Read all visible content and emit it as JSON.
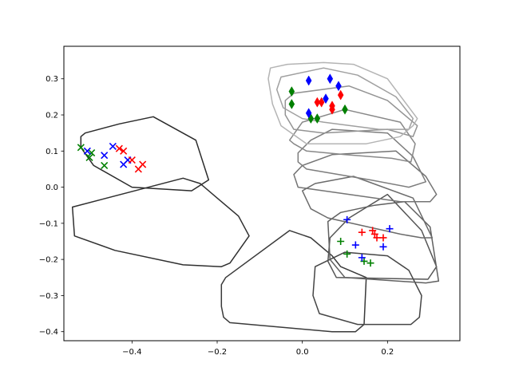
{
  "chart_data": {
    "type": "scatter",
    "title": "",
    "xlabel": "",
    "ylabel": "",
    "xlim": [
      -0.56,
      0.37
    ],
    "ylim": [
      -0.425,
      0.39
    ],
    "grid": false,
    "x_ticks": [
      {
        "value": -0.4,
        "label": "−0.4"
      },
      {
        "value": -0.2,
        "label": "−0.2"
      },
      {
        "value": 0.0,
        "label": "0.0"
      },
      {
        "value": 0.2,
        "label": "0.2"
      }
    ],
    "y_ticks": [
      {
        "value": -0.4,
        "label": "−0.4"
      },
      {
        "value": -0.3,
        "label": "−0.3"
      },
      {
        "value": -0.2,
        "label": "−0.2"
      },
      {
        "value": -0.1,
        "label": "−0.1"
      },
      {
        "value": 0.0,
        "label": "0.0"
      },
      {
        "value": 0.1,
        "label": "0.1"
      },
      {
        "value": 0.2,
        "label": "0.2"
      },
      {
        "value": 0.3,
        "label": "0.3"
      }
    ],
    "hulls": [
      {
        "color": "#2b2b2b",
        "points": [
          [
            -0.52,
            0.14
          ],
          [
            -0.51,
            0.15
          ],
          [
            -0.43,
            0.175
          ],
          [
            -0.35,
            0.195
          ],
          [
            -0.25,
            0.13
          ],
          [
            -0.22,
            0.02
          ],
          [
            -0.26,
            -0.01
          ],
          [
            -0.4,
            0.0
          ],
          [
            -0.49,
            0.06
          ],
          [
            -0.52,
            0.11
          ]
        ]
      },
      {
        "color": "#2f2f2f",
        "points": [
          [
            -0.54,
            -0.055
          ],
          [
            -0.28,
            0.025
          ],
          [
            -0.24,
            0.01
          ],
          [
            -0.2,
            -0.03
          ],
          [
            -0.15,
            -0.08
          ],
          [
            -0.125,
            -0.135
          ],
          [
            -0.17,
            -0.21
          ],
          [
            -0.19,
            -0.22
          ],
          [
            -0.28,
            -0.215
          ],
          [
            -0.44,
            -0.175
          ],
          [
            -0.535,
            -0.135
          ]
        ]
      },
      {
        "color": "#3a3a3a",
        "points": [
          [
            -0.19,
            -0.27
          ],
          [
            -0.18,
            -0.25
          ],
          [
            -0.03,
            -0.12
          ],
          [
            0.02,
            -0.14
          ],
          [
            0.07,
            -0.19
          ],
          [
            0.09,
            -0.22
          ],
          [
            0.15,
            -0.25
          ],
          [
            0.145,
            -0.38
          ],
          [
            0.125,
            -0.4
          ],
          [
            0.07,
            -0.4
          ],
          [
            -0.17,
            -0.375
          ],
          [
            -0.185,
            -0.36
          ],
          [
            -0.19,
            -0.33
          ]
        ]
      },
      {
        "color": "#454545",
        "points": [
          [
            0.025,
            -0.3
          ],
          [
            0.03,
            -0.22
          ],
          [
            0.1,
            -0.18
          ],
          [
            0.2,
            -0.19
          ],
          [
            0.25,
            -0.23
          ],
          [
            0.28,
            -0.3
          ],
          [
            0.275,
            -0.36
          ],
          [
            0.255,
            -0.38
          ],
          [
            0.13,
            -0.38
          ],
          [
            0.04,
            -0.35
          ]
        ]
      },
      {
        "color": "#555555",
        "points": [
          [
            0.06,
            -0.205
          ],
          [
            0.065,
            -0.14
          ],
          [
            0.11,
            -0.085
          ],
          [
            0.2,
            -0.02
          ],
          [
            0.28,
            -0.12
          ],
          [
            0.315,
            -0.22
          ],
          [
            0.295,
            -0.255
          ],
          [
            0.08,
            -0.25
          ]
        ]
      },
      {
        "color": "#606060",
        "points": [
          [
            0.06,
            -0.095
          ],
          [
            0.09,
            -0.07
          ],
          [
            0.17,
            -0.05
          ],
          [
            0.24,
            -0.04
          ],
          [
            0.3,
            -0.11
          ],
          [
            0.32,
            -0.26
          ],
          [
            0.29,
            -0.265
          ],
          [
            0.1,
            -0.25
          ],
          [
            0.065,
            -0.2
          ]
        ]
      },
      {
        "color": "#6b6b6b",
        "points": [
          [
            0.0,
            -0.01
          ],
          [
            0.03,
            0.01
          ],
          [
            0.12,
            0.03
          ],
          [
            0.26,
            -0.03
          ],
          [
            0.305,
            -0.14
          ],
          [
            0.28,
            -0.14
          ],
          [
            0.23,
            -0.13
          ],
          [
            0.06,
            -0.085
          ],
          [
            0.02,
            -0.06
          ]
        ]
      },
      {
        "color": "#747474",
        "points": [
          [
            -0.02,
            0.035
          ],
          [
            0.0,
            0.06
          ],
          [
            0.07,
            0.09
          ],
          [
            0.22,
            0.1
          ],
          [
            0.29,
            0.03
          ],
          [
            0.315,
            -0.02
          ],
          [
            0.3,
            -0.04
          ],
          [
            0.23,
            -0.04
          ],
          [
            0.05,
            -0.01
          ],
          [
            -0.01,
            0.0
          ]
        ]
      },
      {
        "color": "#7d7d7d",
        "points": [
          [
            -0.01,
            0.095
          ],
          [
            0.02,
            0.13
          ],
          [
            0.07,
            0.16
          ],
          [
            0.2,
            0.15
          ],
          [
            0.26,
            0.085
          ],
          [
            0.29,
            0.015
          ],
          [
            0.25,
            0.0
          ],
          [
            0.16,
            0.02
          ],
          [
            0.01,
            0.05
          ],
          [
            -0.01,
            0.07
          ]
        ]
      },
      {
        "color": "#888888",
        "points": [
          [
            -0.03,
            0.13
          ],
          [
            0.0,
            0.18
          ],
          [
            0.1,
            0.215
          ],
          [
            0.23,
            0.18
          ],
          [
            0.265,
            0.12
          ],
          [
            0.255,
            0.07
          ],
          [
            0.21,
            0.08
          ],
          [
            0.1,
            0.09
          ],
          [
            0.01,
            0.1
          ],
          [
            -0.02,
            0.12
          ]
        ]
      },
      {
        "color": "#939393",
        "points": [
          [
            -0.04,
            0.24
          ],
          [
            -0.02,
            0.26
          ],
          [
            0.11,
            0.28
          ],
          [
            0.2,
            0.24
          ],
          [
            0.27,
            0.17
          ],
          [
            0.26,
            0.14
          ],
          [
            0.2,
            0.16
          ],
          [
            0.05,
            0.15
          ],
          [
            -0.02,
            0.16
          ],
          [
            -0.04,
            0.2
          ]
        ]
      },
      {
        "color": "#a0a0a0",
        "points": [
          [
            -0.06,
            0.27
          ],
          [
            -0.05,
            0.305
          ],
          [
            0.05,
            0.33
          ],
          [
            0.13,
            0.31
          ],
          [
            0.22,
            0.25
          ],
          [
            0.26,
            0.19
          ],
          [
            0.25,
            0.16
          ],
          [
            0.18,
            0.16
          ],
          [
            0.05,
            0.18
          ],
          [
            0.0,
            0.19
          ],
          [
            -0.045,
            0.22
          ]
        ]
      },
      {
        "color": "#b4b4b4",
        "points": [
          [
            -0.08,
            0.3
          ],
          [
            -0.075,
            0.33
          ],
          [
            -0.035,
            0.34
          ],
          [
            0.05,
            0.345
          ],
          [
            0.12,
            0.34
          ],
          [
            0.2,
            0.3
          ],
          [
            0.27,
            0.19
          ],
          [
            0.26,
            0.17
          ],
          [
            0.23,
            0.14
          ],
          [
            0.15,
            0.12
          ],
          [
            0.01,
            0.12
          ],
          [
            -0.05,
            0.17
          ],
          [
            -0.07,
            0.23
          ]
        ]
      }
    ],
    "series": [
      {
        "marker": "x",
        "color": "#008000",
        "points": [
          [
            -0.52,
            0.11
          ],
          [
            -0.495,
            0.095
          ],
          [
            -0.5,
            0.082
          ],
          [
            -0.465,
            0.06
          ]
        ]
      },
      {
        "marker": "x",
        "color": "#0000ff",
        "points": [
          [
            -0.505,
            0.1
          ],
          [
            -0.465,
            0.088
          ],
          [
            -0.445,
            0.113
          ],
          [
            -0.42,
            0.063
          ],
          [
            -0.41,
            0.075
          ]
        ]
      },
      {
        "marker": "x",
        "color": "#ff0000",
        "points": [
          [
            -0.43,
            0.107
          ],
          [
            -0.42,
            0.1
          ],
          [
            -0.4,
            0.075
          ],
          [
            -0.385,
            0.05
          ],
          [
            -0.375,
            0.063
          ]
        ]
      },
      {
        "marker": "d",
        "color": "#008000",
        "points": [
          [
            -0.025,
            0.265
          ],
          [
            -0.025,
            0.23
          ],
          [
            0.02,
            0.19
          ],
          [
            0.035,
            0.19
          ],
          [
            0.1,
            0.215
          ]
        ]
      },
      {
        "marker": "d",
        "color": "#0000ff",
        "points": [
          [
            0.015,
            0.295
          ],
          [
            0.065,
            0.3
          ],
          [
            0.085,
            0.28
          ],
          [
            0.015,
            0.205
          ],
          [
            0.055,
            0.245
          ]
        ]
      },
      {
        "marker": "d",
        "color": "#ff0000",
        "points": [
          [
            0.035,
            0.235
          ],
          [
            0.045,
            0.235
          ],
          [
            0.07,
            0.225
          ],
          [
            0.07,
            0.215
          ],
          [
            0.09,
            0.255
          ]
        ]
      },
      {
        "marker": "+",
        "color": "#008000",
        "points": [
          [
            0.09,
            -0.15
          ],
          [
            0.105,
            -0.185
          ],
          [
            0.145,
            -0.205
          ],
          [
            0.16,
            -0.21
          ]
        ]
      },
      {
        "marker": "+",
        "color": "#0000ff",
        "points": [
          [
            0.105,
            -0.09
          ],
          [
            0.125,
            -0.16
          ],
          [
            0.14,
            -0.195
          ],
          [
            0.19,
            -0.165
          ],
          [
            0.205,
            -0.115
          ]
        ]
      },
      {
        "marker": "+",
        "color": "#ff0000",
        "points": [
          [
            0.14,
            -0.125
          ],
          [
            0.165,
            -0.12
          ],
          [
            0.17,
            -0.13
          ],
          [
            0.175,
            -0.14
          ],
          [
            0.19,
            -0.14
          ]
        ]
      }
    ]
  }
}
